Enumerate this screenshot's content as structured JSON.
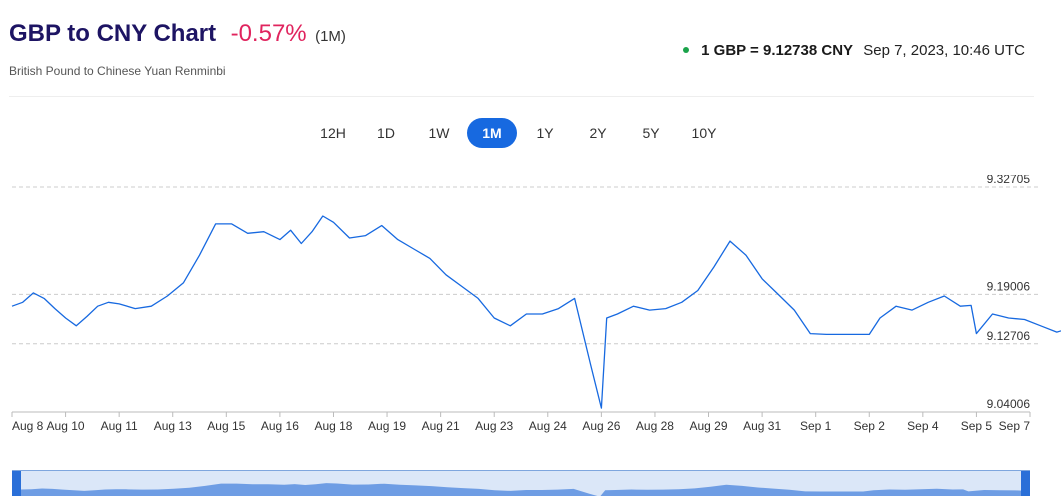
{
  "header": {
    "title": "GBP to CNY Chart",
    "change": "-0.57%",
    "period": "(1M)",
    "subtitle": "British Pound to Chinese Yuan Renminbi",
    "rate": "1 GBP = 9.12738 CNY",
    "timestamp": "Sep 7, 2023, 10:46 UTC"
  },
  "tabs": [
    {
      "label": "12H",
      "active": false
    },
    {
      "label": "1D",
      "active": false
    },
    {
      "label": "1W",
      "active": false
    },
    {
      "label": "1M",
      "active": true
    },
    {
      "label": "1Y",
      "active": false
    },
    {
      "label": "2Y",
      "active": false
    },
    {
      "label": "5Y",
      "active": false
    },
    {
      "label": "10Y",
      "active": false
    }
  ],
  "colors": {
    "line": "#1769e0",
    "change_negative": "#e0245e",
    "title": "#1d1463",
    "live_dot": "#1aa34a"
  },
  "chart_data": {
    "type": "line",
    "title": "",
    "xlabel": "",
    "ylabel": "",
    "ylim": [
      9.04006,
      9.32705
    ],
    "y_ticks": [
      "9.32705",
      "9.19006",
      "9.12706",
      "9.04006"
    ],
    "grid": "horizontal dashed",
    "x_tick_labels": [
      "Aug 8",
      "Aug 10",
      "Aug 11",
      "Aug 13",
      "Aug 15",
      "Aug 16",
      "Aug 18",
      "Aug 19",
      "Aug 21",
      "Aug 23",
      "Aug 24",
      "Aug 26",
      "Aug 28",
      "Aug 29",
      "Aug 31",
      "Sep 1",
      "Sep 2",
      "Sep 4",
      "Sep 5",
      "Sep 7"
    ],
    "series": [
      {
        "x": [
          0,
          0.2,
          0.4,
          0.6,
          0.8,
          1.0,
          1.2,
          1.4,
          1.6,
          1.8,
          2.0,
          2.3,
          2.6,
          2.9,
          3.2,
          3.5,
          3.8,
          4.1,
          4.4,
          4.7,
          5.0,
          5.2,
          5.4,
          5.6,
          5.8,
          6.0,
          6.3,
          6.6,
          6.9,
          7.2,
          7.5,
          7.8,
          8.1,
          8.4,
          8.7,
          9.0,
          9.3,
          9.6,
          9.9,
          10.2,
          10.5,
          10.8,
          11.0,
          11.1,
          11.3,
          11.6,
          11.9,
          12.2,
          12.5,
          12.8,
          13.1,
          13.4,
          13.7,
          14.0,
          14.3,
          14.6,
          14.9,
          15.2,
          15.5,
          15.7,
          15.9,
          16.0,
          16.2,
          16.5,
          16.8,
          17.1,
          17.4,
          17.7,
          17.9,
          18.0,
          18.3,
          18.6,
          18.9,
          19.2,
          19.5,
          19.8,
          20.0
        ],
        "y": [
          9.175,
          9.18,
          9.192,
          9.185,
          9.172,
          9.16,
          9.15,
          9.162,
          9.175,
          9.18,
          9.178,
          9.172,
          9.175,
          9.188,
          9.205,
          9.24,
          9.28,
          9.28,
          9.268,
          9.27,
          9.26,
          9.272,
          9.255,
          9.27,
          9.29,
          9.282,
          9.262,
          9.265,
          9.278,
          9.26,
          9.248,
          9.236,
          9.215,
          9.2,
          9.185,
          9.16,
          9.15,
          9.165,
          9.165,
          9.172,
          9.185,
          9.1,
          9.045,
          9.16,
          9.165,
          9.175,
          9.17,
          9.172,
          9.18,
          9.195,
          9.225,
          9.258,
          9.24,
          9.21,
          9.19,
          9.17,
          9.14,
          9.139,
          9.139,
          9.139,
          9.139,
          9.139,
          9.16,
          9.175,
          9.17,
          9.18,
          9.188,
          9.175,
          9.176,
          9.14,
          9.165,
          9.16,
          9.158,
          9.15,
          9.142,
          9.148,
          9.127
        ]
      }
    ]
  }
}
